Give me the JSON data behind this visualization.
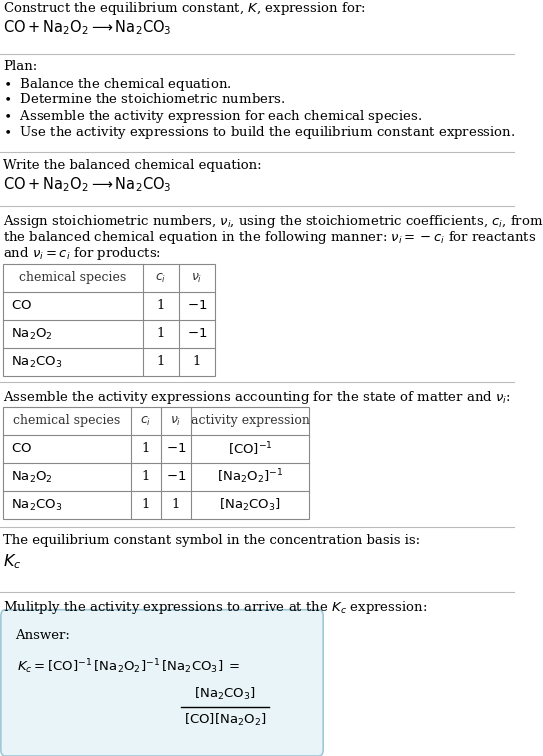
{
  "title_line1": "Construct the equilibrium constant, $K$, expression for:",
  "title_line2": "$\\mathrm{CO + Na_2O_2 \\longrightarrow Na_2CO_3}$",
  "plan_header": "Plan:",
  "plan_bullets": [
    "$\\bullet$  Balance the chemical equation.",
    "$\\bullet$  Determine the stoichiometric numbers.",
    "$\\bullet$  Assemble the activity expression for each chemical species.",
    "$\\bullet$  Use the activity expressions to build the equilibrium constant expression."
  ],
  "section2_header": "Write the balanced chemical equation:",
  "section2_eq": "$\\mathrm{CO + Na_2O_2 \\longrightarrow Na_2CO_3}$",
  "section3_header_lines": [
    "Assign stoichiometric numbers, $\\nu_i$, using the stoichiometric coefficients, $c_i$, from",
    "the balanced chemical equation in the following manner: $\\nu_i = -c_i$ for reactants",
    "and $\\nu_i = c_i$ for products:"
  ],
  "table1_cols": [
    "chemical species",
    "$c_i$",
    "$\\nu_i$"
  ],
  "table1_rows": [
    [
      "$\\mathrm{CO}$",
      "1",
      "$-1$"
    ],
    [
      "$\\mathrm{Na_2O_2}$",
      "1",
      "$-1$"
    ],
    [
      "$\\mathrm{Na_2CO_3}$",
      "1",
      "1"
    ]
  ],
  "section4_header": "Assemble the activity expressions accounting for the state of matter and $\\nu_i$:",
  "table2_cols": [
    "chemical species",
    "$c_i$",
    "$\\nu_i$",
    "activity expression"
  ],
  "table2_rows": [
    [
      "$\\mathrm{CO}$",
      "1",
      "$-1$",
      "$[\\mathrm{CO}]^{-1}$"
    ],
    [
      "$\\mathrm{Na_2O_2}$",
      "1",
      "$-1$",
      "$[\\mathrm{Na_2O_2}]^{-1}$"
    ],
    [
      "$\\mathrm{Na_2CO_3}$",
      "1",
      "1",
      "$[\\mathrm{Na_2CO_3}]$"
    ]
  ],
  "section5_line1": "The equilibrium constant symbol in the concentration basis is:",
  "section5_line2": "$K_c$",
  "section6_header": "Mulitply the activity expressions to arrive at the $K_c$ expression:",
  "answer_label": "Answer:",
  "answer_eq_left": "$K_c = [\\mathrm{CO}]^{-1}\\,[\\mathrm{Na_2O_2}]^{-1}\\,[\\mathrm{Na_2CO_3}]\\; =\\; $",
  "answer_frac_num": "$[\\mathrm{Na_2CO_3}]$",
  "answer_frac_den": "$[\\mathrm{CO}][\\mathrm{Na_2O_2}]$",
  "bg_color": "#ffffff",
  "answer_box_bg": "#e8f4f8",
  "answer_box_border": "#a0c8d8",
  "divider_color": "#bbbbbb",
  "text_color": "#000000",
  "font_size": 9.5
}
